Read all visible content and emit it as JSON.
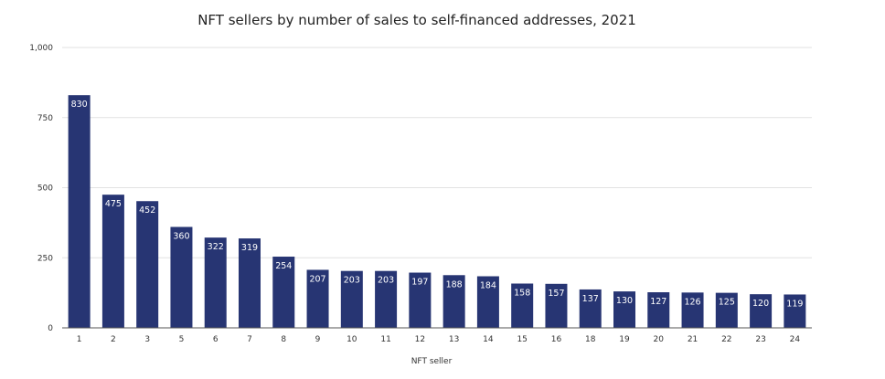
{
  "chart_data": {
    "type": "bar",
    "title": "NFT sellers by number of sales to self-financed addresses, 2021",
    "xlabel": "NFT seller",
    "ylabel": "",
    "ylim": [
      0,
      1000
    ],
    "yticks": [
      0,
      250,
      500,
      750,
      1000
    ],
    "ytick_labels": [
      "0",
      "250",
      "500",
      "750",
      "1,000"
    ],
    "grid": true,
    "bar_color": "#273573",
    "label_color": "#ffffff",
    "categories": [
      "1",
      "2",
      "3",
      "5",
      "6",
      "7",
      "8",
      "9",
      "10",
      "11",
      "12",
      "13",
      "14",
      "15",
      "16",
      "18",
      "19",
      "20",
      "21",
      "22",
      "23",
      "24"
    ],
    "values": [
      830,
      475,
      452,
      360,
      322,
      319,
      254,
      207,
      203,
      203,
      197,
      188,
      184,
      158,
      157,
      137,
      130,
      127,
      126,
      125,
      120,
      119
    ],
    "data_labels": [
      "830",
      "475",
      "452",
      "360",
      "322",
      "319",
      "254",
      "207",
      "203",
      "203",
      "197",
      "188",
      "184",
      "158",
      "157",
      "137",
      "130",
      "127",
      "126",
      "125",
      "120",
      "119"
    ]
  }
}
